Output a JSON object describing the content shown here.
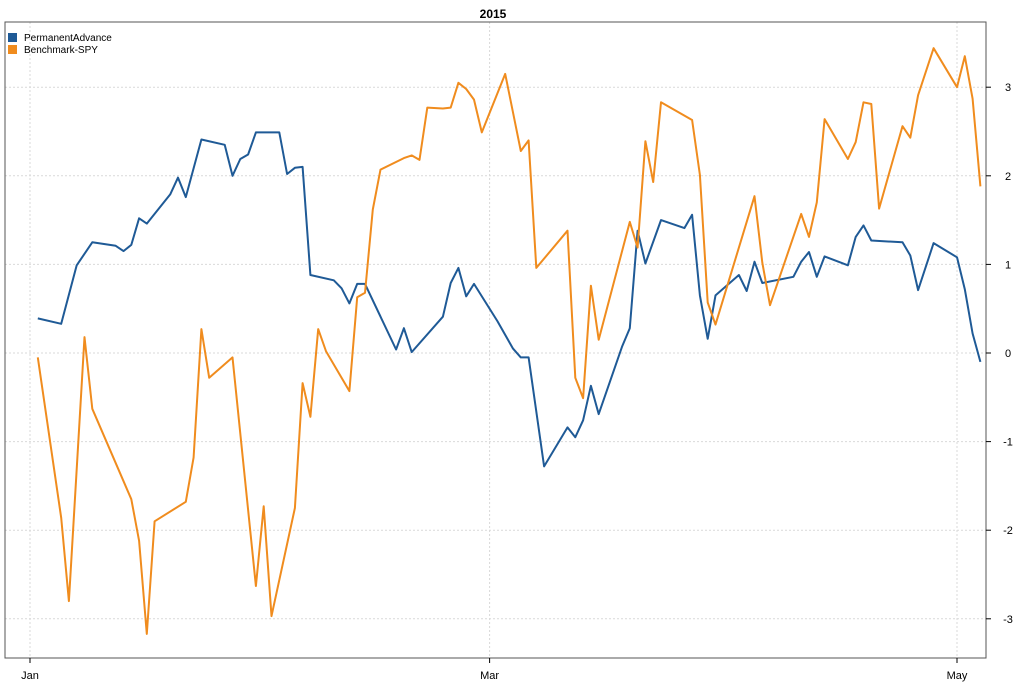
{
  "chart_data": {
    "type": "line",
    "title": "2015",
    "xlabel": "",
    "ylabel": "",
    "x_tick_labels": [
      "Jan",
      "Mar",
      "May"
    ],
    "x_tick_dates": [
      "2015-01-02",
      "2015-03-02",
      "2015-05-01"
    ],
    "ylim": [
      -3.4,
      3.65
    ],
    "y_ticks": [
      -3,
      -2,
      -1,
      0,
      1,
      2,
      3
    ],
    "y_tick_labels": [
      "-3",
      "-2",
      "-1",
      "0",
      "1",
      "2",
      "3"
    ],
    "grid": true,
    "legend_position": "top-left",
    "series": [
      {
        "name": "PermanentAdvance",
        "color": "#1f5a96",
        "points": [
          [
            "2015-01-03",
            0.39
          ],
          [
            "2015-01-06",
            0.33
          ],
          [
            "2015-01-08",
            0.99
          ],
          [
            "2015-01-10",
            1.25
          ],
          [
            "2015-01-13",
            1.21
          ],
          [
            "2015-01-14",
            1.15
          ],
          [
            "2015-01-15",
            1.22
          ],
          [
            "2015-01-16",
            1.52
          ],
          [
            "2015-01-17",
            1.46
          ],
          [
            "2015-01-20",
            1.79
          ],
          [
            "2015-01-21",
            1.98
          ],
          [
            "2015-01-22",
            1.76
          ],
          [
            "2015-01-24",
            2.41
          ],
          [
            "2015-01-27",
            2.35
          ],
          [
            "2015-01-28",
            2.0
          ],
          [
            "2015-01-29",
            2.19
          ],
          [
            "2015-01-30",
            2.24
          ],
          [
            "2015-01-31",
            2.49
          ],
          [
            "2015-02-03",
            2.49
          ],
          [
            "2015-02-04",
            2.02
          ],
          [
            "2015-02-05",
            2.09
          ],
          [
            "2015-02-06",
            2.1
          ],
          [
            "2015-02-07",
            0.88
          ],
          [
            "2015-02-10",
            0.82
          ],
          [
            "2015-02-11",
            0.73
          ],
          [
            "2015-02-12",
            0.56
          ],
          [
            "2015-02-13",
            0.78
          ],
          [
            "2015-02-14",
            0.78
          ],
          [
            "2015-02-18",
            0.04
          ],
          [
            "2015-02-19",
            0.28
          ],
          [
            "2015-02-20",
            0.01
          ],
          [
            "2015-02-24",
            0.41
          ],
          [
            "2015-02-25",
            0.79
          ],
          [
            "2015-02-26",
            0.96
          ],
          [
            "2015-02-27",
            0.64
          ],
          [
            "2015-02-28",
            0.78
          ],
          [
            "2015-03-03",
            0.36
          ],
          [
            "2015-03-05",
            0.05
          ],
          [
            "2015-03-06",
            -0.05
          ],
          [
            "2015-03-07",
            -0.05
          ],
          [
            "2015-03-09",
            -1.28
          ],
          [
            "2015-03-12",
            -0.84
          ],
          [
            "2015-03-13",
            -0.95
          ],
          [
            "2015-03-14",
            -0.76
          ],
          [
            "2015-03-15",
            -0.37
          ],
          [
            "2015-03-16",
            -0.69
          ],
          [
            "2015-03-19",
            0.07
          ],
          [
            "2015-03-20",
            0.28
          ],
          [
            "2015-03-21",
            1.38
          ],
          [
            "2015-03-22",
            1.01
          ],
          [
            "2015-03-24",
            1.5
          ],
          [
            "2015-03-27",
            1.41
          ],
          [
            "2015-03-28",
            1.56
          ],
          [
            "2015-03-29",
            0.65
          ],
          [
            "2015-03-30",
            0.16
          ],
          [
            "2015-03-31",
            0.65
          ],
          [
            "2015-04-03",
            0.88
          ],
          [
            "2015-04-04",
            0.7
          ],
          [
            "2015-04-05",
            1.03
          ],
          [
            "2015-04-06",
            0.79
          ],
          [
            "2015-04-10",
            0.86
          ],
          [
            "2015-04-11",
            1.03
          ],
          [
            "2015-04-12",
            1.14
          ],
          [
            "2015-04-13",
            0.86
          ],
          [
            "2015-04-14",
            1.09
          ],
          [
            "2015-04-17",
            0.99
          ],
          [
            "2015-04-18",
            1.31
          ],
          [
            "2015-04-19",
            1.44
          ],
          [
            "2015-04-20",
            1.27
          ],
          [
            "2015-04-24",
            1.25
          ],
          [
            "2015-04-25",
            1.1
          ],
          [
            "2015-04-26",
            0.71
          ],
          [
            "2015-04-28",
            1.24
          ],
          [
            "2015-05-01",
            1.08
          ],
          [
            "2015-05-02",
            0.72
          ],
          [
            "2015-05-03",
            0.22
          ],
          [
            "2015-05-04",
            -0.1
          ]
        ]
      },
      {
        "name": "Benchmark-SPY",
        "color": "#f08c1e",
        "points": [
          [
            "2015-01-03",
            -0.05
          ],
          [
            "2015-01-06",
            -1.86
          ],
          [
            "2015-01-07",
            -2.8
          ],
          [
            "2015-01-09",
            0.18
          ],
          [
            "2015-01-10",
            -0.63
          ],
          [
            "2015-01-15",
            -1.65
          ],
          [
            "2015-01-16",
            -2.12
          ],
          [
            "2015-01-17",
            -3.17
          ],
          [
            "2015-01-18",
            -1.9
          ],
          [
            "2015-01-22",
            -1.68
          ],
          [
            "2015-01-23",
            -1.18
          ],
          [
            "2015-01-24",
            0.27
          ],
          [
            "2015-01-25",
            -0.28
          ],
          [
            "2015-01-28",
            -0.05
          ],
          [
            "2015-01-31",
            -2.63
          ],
          [
            "2015-02-01",
            -1.73
          ],
          [
            "2015-02-02",
            -2.97
          ],
          [
            "2015-02-05",
            -1.75
          ],
          [
            "2015-02-06",
            -0.34
          ],
          [
            "2015-02-07",
            -0.72
          ],
          [
            "2015-02-08",
            0.27
          ],
          [
            "2015-02-09",
            0.02
          ],
          [
            "2015-02-12",
            -0.43
          ],
          [
            "2015-02-13",
            0.63
          ],
          [
            "2015-02-14",
            0.68
          ],
          [
            "2015-02-15",
            1.62
          ],
          [
            "2015-02-16",
            2.07
          ],
          [
            "2015-02-19",
            2.2
          ],
          [
            "2015-02-20",
            2.23
          ],
          [
            "2015-02-21",
            2.18
          ],
          [
            "2015-02-22",
            2.77
          ],
          [
            "2015-02-24",
            2.76
          ],
          [
            "2015-02-25",
            2.77
          ],
          [
            "2015-02-26",
            3.05
          ],
          [
            "2015-02-27",
            2.98
          ],
          [
            "2015-02-28",
            2.86
          ],
          [
            "2015-03-01",
            2.49
          ],
          [
            "2015-03-04",
            3.15
          ],
          [
            "2015-03-06",
            2.28
          ],
          [
            "2015-03-07",
            2.4
          ],
          [
            "2015-03-08",
            0.96
          ],
          [
            "2015-03-12",
            1.38
          ],
          [
            "2015-03-13",
            -0.28
          ],
          [
            "2015-03-14",
            -0.51
          ],
          [
            "2015-03-15",
            0.76
          ],
          [
            "2015-03-16",
            0.15
          ],
          [
            "2015-03-20",
            1.48
          ],
          [
            "2015-03-21",
            1.19
          ],
          [
            "2015-03-22",
            2.39
          ],
          [
            "2015-03-23",
            1.93
          ],
          [
            "2015-03-24",
            2.83
          ],
          [
            "2015-03-28",
            2.63
          ],
          [
            "2015-03-29",
            2.01
          ],
          [
            "2015-03-30",
            0.57
          ],
          [
            "2015-03-31",
            0.32
          ],
          [
            "2015-04-05",
            1.77
          ],
          [
            "2015-04-06",
            1.02
          ],
          [
            "2015-04-07",
            0.54
          ],
          [
            "2015-04-11",
            1.57
          ],
          [
            "2015-04-12",
            1.31
          ],
          [
            "2015-04-13",
            1.7
          ],
          [
            "2015-04-14",
            2.64
          ],
          [
            "2015-04-17",
            2.19
          ],
          [
            "2015-04-18",
            2.38
          ],
          [
            "2015-04-19",
            2.83
          ],
          [
            "2015-04-20",
            2.81
          ],
          [
            "2015-04-21",
            1.63
          ],
          [
            "2015-04-24",
            2.56
          ],
          [
            "2015-04-25",
            2.43
          ],
          [
            "2015-04-26",
            2.91
          ],
          [
            "2015-04-28",
            3.44
          ],
          [
            "2015-05-01",
            3.0
          ],
          [
            "2015-05-02",
            3.35
          ],
          [
            "2015-05-03",
            2.87
          ],
          [
            "2015-05-04",
            1.88
          ]
        ]
      }
    ]
  }
}
